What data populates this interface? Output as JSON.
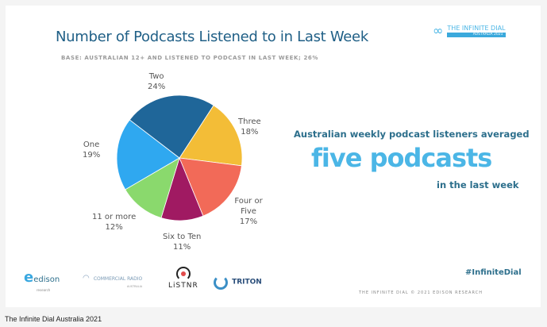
{
  "slide": {
    "brand": {
      "logo_main": "THE INFINITE DIAL",
      "logo_sub": "AUSTRALIA 2021"
    },
    "callout": {
      "line1": "Australian weekly podcast listeners averaged",
      "highlight": "five podcasts",
      "line2": "in the last week"
    },
    "sponsors": [
      "edison",
      "research",
      "COMMERCIAL RADIO",
      "AUSTRALIA",
      "LiSTNR",
      "TRITON"
    ],
    "hashtag": "#InfiniteDial",
    "copyright": "THE INFINITE DIAL  © 2021 EDISON RESEARCH"
  },
  "caption": "The Infinite Dial Australia 2021",
  "chart_data": {
    "type": "pie",
    "title": "Number of Podcasts Listened to in Last Week",
    "subtitle": "BASE: AUSTRALIAN 12+ AND LISTENED TO PODCAST IN LAST WEEK; 26%",
    "start_angle_deg": 33,
    "direction": "clockwise",
    "slices": [
      {
        "label": "Three",
        "value": 18,
        "display": "18%",
        "color": "#f3bd37"
      },
      {
        "label": "Four or Five",
        "value": 17,
        "display": "17%",
        "color": "#f26a58"
      },
      {
        "label": "Six to Ten",
        "value": 11,
        "display": "11%",
        "color": "#a01a62"
      },
      {
        "label": "11 or more",
        "value": 12,
        "display": "12%",
        "color": "#8ad96d"
      },
      {
        "label": "One",
        "value": 19,
        "display": "19%",
        "color": "#2fa8f0"
      },
      {
        "label": "Two",
        "value": 24,
        "display": "24%",
        "color": "#1f6699"
      }
    ]
  }
}
